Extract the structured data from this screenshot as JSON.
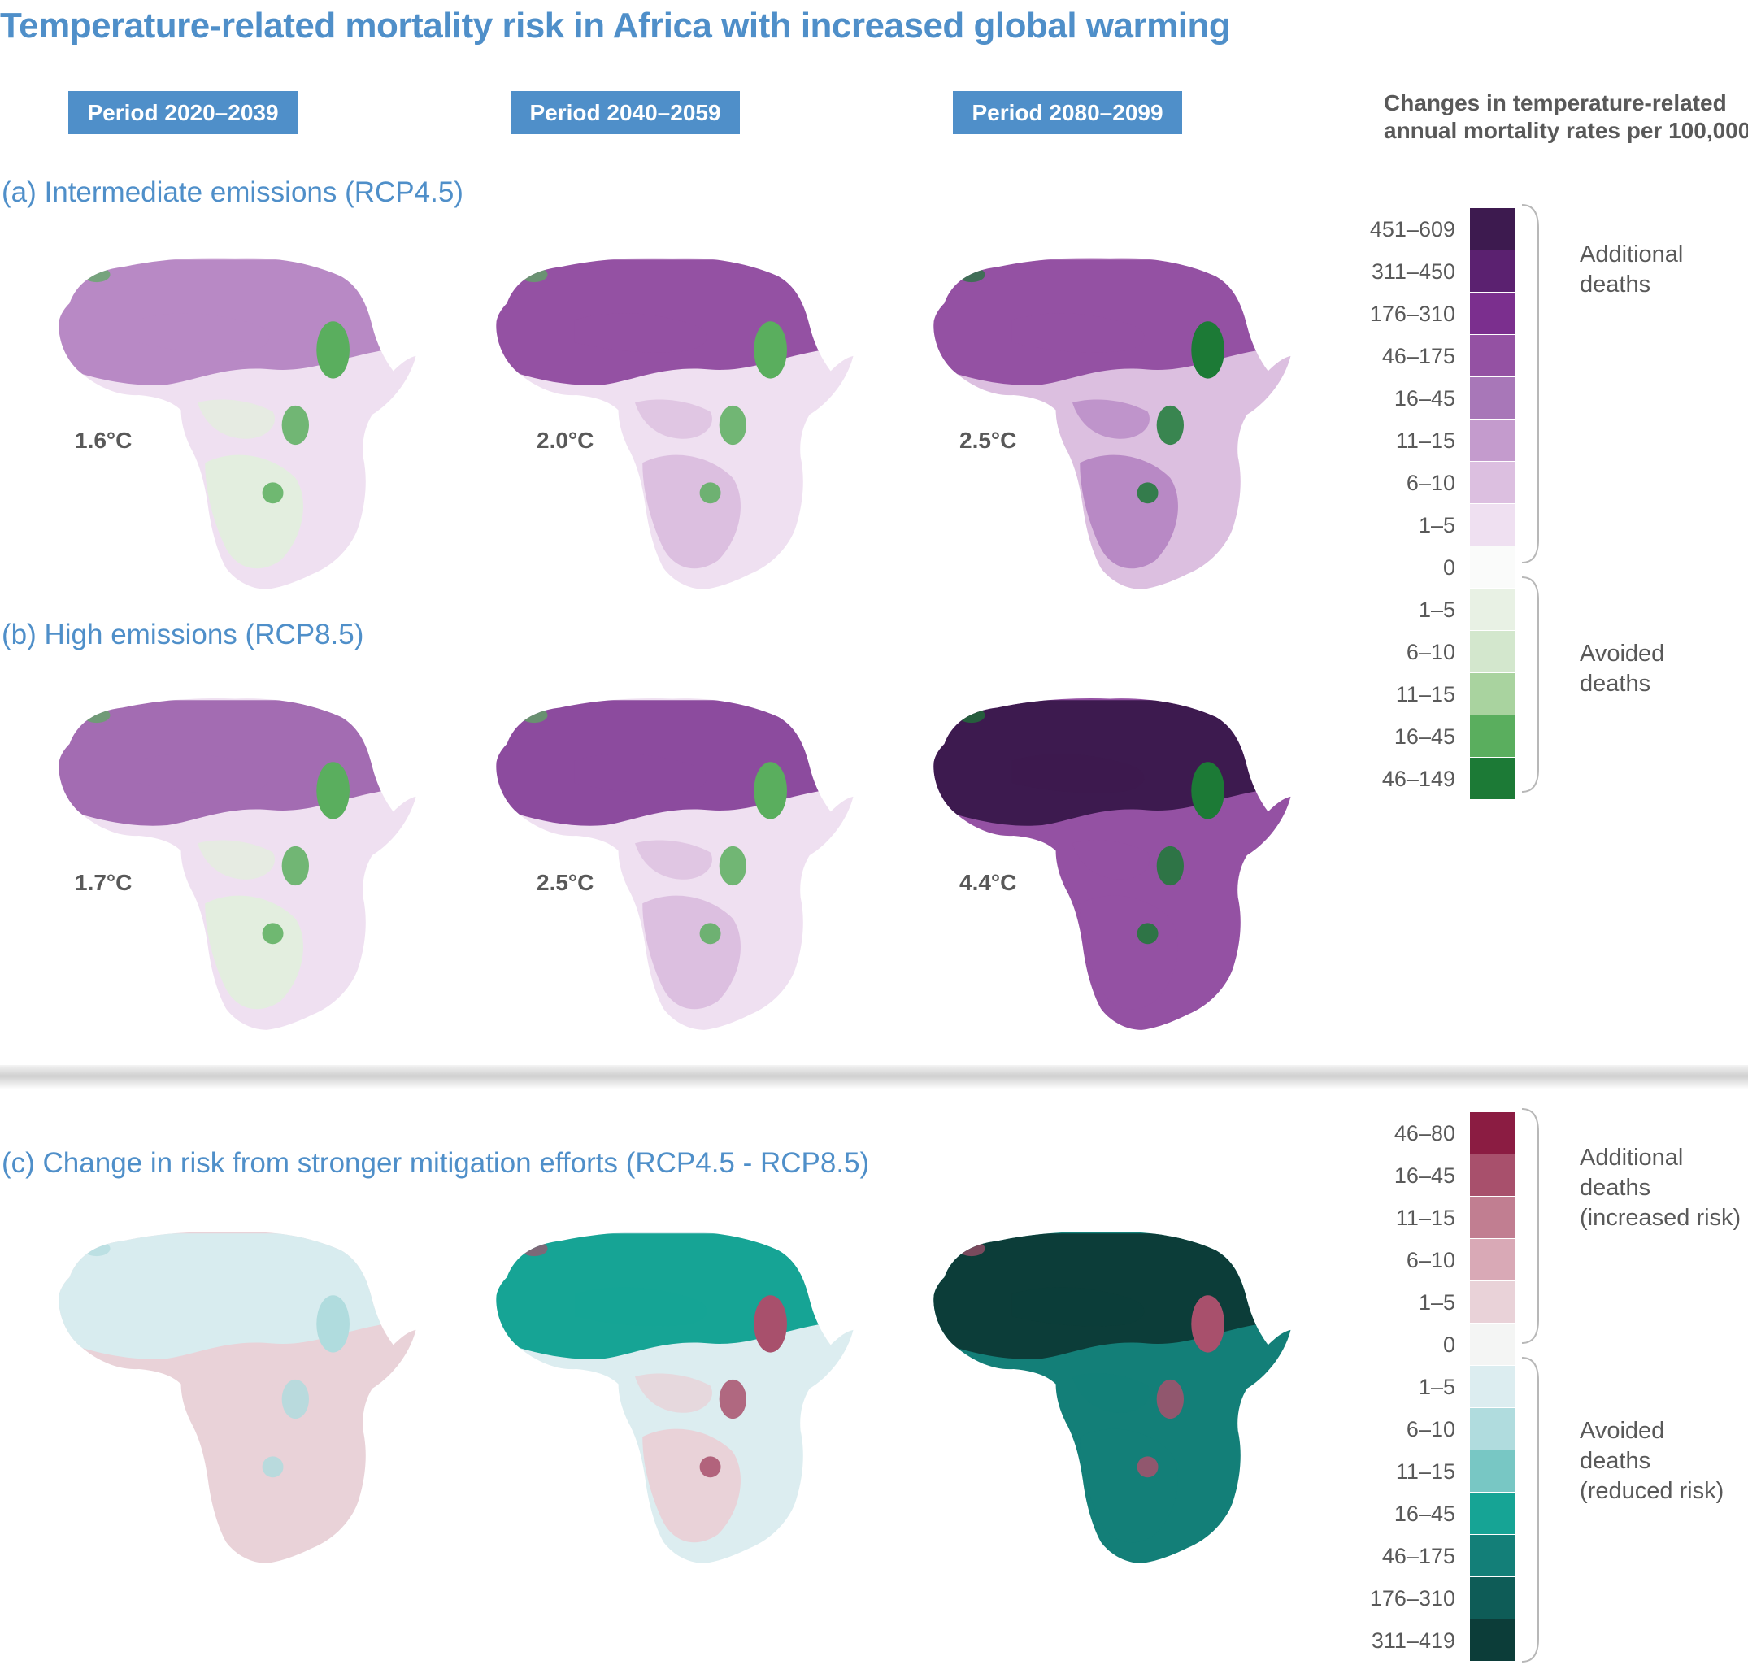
{
  "title": "Temperature-related mortality risk in Africa with increased global warming",
  "periods": [
    "Period 2020–2039",
    "Period 2040–2059",
    "Period 2080–2099"
  ],
  "scenarios": {
    "a": "(a) Intermediate emissions (RCP4.5)",
    "b": "(b) High emissions (RCP8.5)",
    "c": "(c) Change in risk from stronger mitigation efforts (RCP4.5 - RCP8.5)"
  },
  "warming_levels": {
    "a": [
      "1.6°C",
      "2.0°C",
      "2.5°C"
    ],
    "b": [
      "1.7°C",
      "2.5°C",
      "4.4°C"
    ]
  },
  "legend1": {
    "title_line1": "Changes in temperature-related",
    "title_line2": "annual mortality rates per 100,000",
    "items": [
      {
        "label": "451–609",
        "color": "#3d1a4f"
      },
      {
        "label": "311–450",
        "color": "#5b2170"
      },
      {
        "label": "176–310",
        "color": "#7b2f8e"
      },
      {
        "label": "46–175",
        "color": "#9451a3"
      },
      {
        "label": "16–45",
        "color": "#a877b8"
      },
      {
        "label": "11–15",
        "color": "#c49bcd"
      },
      {
        "label": "6–10",
        "color": "#dcbfe0"
      },
      {
        "label": "1–5",
        "color": "#efe0f1"
      },
      {
        "label": "0",
        "color": "#fafbfa"
      },
      {
        "label": "1–5",
        "color": "#e8f1e4"
      },
      {
        "label": "6–10",
        "color": "#d3e7cd"
      },
      {
        "label": "11–15",
        "color": "#a9d39f"
      },
      {
        "label": "16–45",
        "color": "#5aae5e"
      },
      {
        "label": "46–149",
        "color": "#1c7a36"
      }
    ],
    "brace_additional": [
      "Additional",
      "deaths"
    ],
    "brace_avoided": [
      "Avoided",
      "deaths"
    ]
  },
  "legend2": {
    "items": [
      {
        "label": "46–80",
        "color": "#8b1c42"
      },
      {
        "label": "16–45",
        "color": "#a8506c"
      },
      {
        "label": "11–15",
        "color": "#c17e91"
      },
      {
        "label": "6–10",
        "color": "#d9a9b6"
      },
      {
        "label": "1–5",
        "color": "#e9d2d8"
      },
      {
        "label": "0",
        "color": "#f4f5f4"
      },
      {
        "label": "1–5",
        "color": "#dcedf0"
      },
      {
        "label": "6–10",
        "color": "#b0dcde"
      },
      {
        "label": "11–15",
        "color": "#78c7c4"
      },
      {
        "label": "16–45",
        "color": "#16a495"
      },
      {
        "label": "46–175",
        "color": "#137f78"
      },
      {
        "label": "176–310",
        "color": "#0e5c57"
      },
      {
        "label": "311–419",
        "color": "#0c3d39"
      }
    ],
    "brace_additional": [
      "Additional",
      "deaths",
      "(increased risk)"
    ],
    "brace_avoided": [
      "Avoided",
      "deaths",
      "(reduced risk)"
    ]
  },
  "map_colors": {
    "a1": {
      "base": "#efe0f1",
      "north": "#b889c5",
      "south": "#e3eedf",
      "accent": "#5aae5e"
    },
    "a2": {
      "base": "#efe0f1",
      "north": "#9451a3",
      "south": "#dcbfe0",
      "accent": "#5aae5e"
    },
    "a3": {
      "base": "#dcbfe0",
      "north": "#9451a3",
      "south": "#b889c5",
      "accent": "#1c7a36"
    },
    "b1": {
      "base": "#efe0f1",
      "north": "#a36cb2",
      "south": "#e3eedf",
      "accent": "#5aae5e"
    },
    "b2": {
      "base": "#efe0f1",
      "north": "#8c4b9e",
      "south": "#dcbfe0",
      "accent": "#5aae5e"
    },
    "b3": {
      "base": "#9451a3",
      "north": "#3d1a4f",
      "south": "#9451a3",
      "accent": "#1c7a36"
    },
    "c1": {
      "base": "#e9d2d8",
      "north": "#d8ecef",
      "south": "#e9d2d8",
      "accent": "#b0dcde"
    },
    "c2": {
      "base": "#dcedf0",
      "north": "#16a495",
      "south": "#e9d2d8",
      "accent": "#a8506c"
    },
    "c3": {
      "base": "#137f78",
      "north": "#0c3d39",
      "south": "#137f78",
      "accent": "#a8506c"
    }
  }
}
